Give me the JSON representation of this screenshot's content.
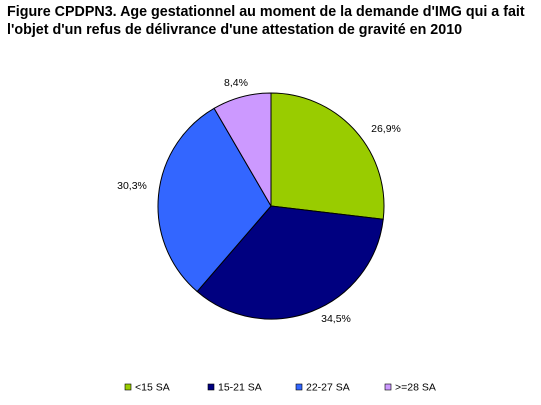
{
  "chart_data": {
    "type": "pie",
    "title_lines": [
      "Figure CPDPN3. Age gestationnel au moment de la demande d'IMG qui a fait",
      "l'objet d'un refus de délivrance d'une attestation de gravité en 2010"
    ],
    "categories": [
      "<15 SA",
      "15-21 SA",
      "22-27 SA",
      ">=28 SA"
    ],
    "values": [
      26.9,
      34.5,
      30.3,
      8.4
    ],
    "data_labels": [
      "26,9%",
      "34,5%",
      "30,3%",
      "8,4%"
    ],
    "colors": [
      "#99CC00",
      "#000080",
      "#3366FF",
      "#CC99FF"
    ],
    "start_angle": "12 o'clock",
    "direction": "clockwise",
    "legend_position": "bottom"
  }
}
